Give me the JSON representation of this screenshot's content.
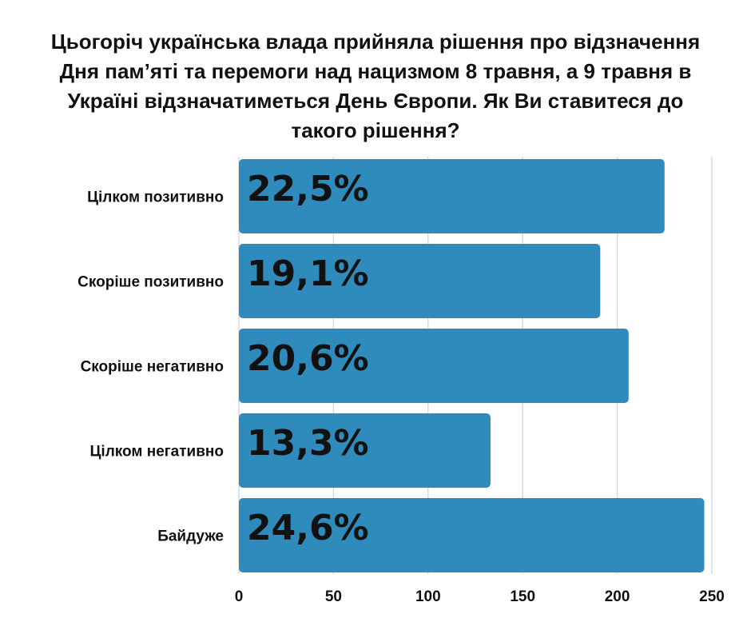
{
  "chart_data": {
    "type": "bar",
    "orientation": "horizontal",
    "title": "Цьогоріч українська влада прийняла рішення про відзначення Дня пам’яті та перемоги над нацизмом 8 травня, а 9 травня в Україні відзначатиметься День Європи. Як Ви ставитеся до такого рішення?",
    "categories": [
      "Цілком позитивно",
      "Скоріше позитивно",
      "Скоріше негативно",
      "Цілком негативно",
      "Байдуже"
    ],
    "values": [
      225,
      191,
      206,
      133,
      246
    ],
    "data_labels": [
      "22,5%",
      "19,1%",
      "20,6%",
      "13,3%",
      "24,6%"
    ],
    "xlim": [
      0,
      250
    ],
    "xticks": [
      0,
      50,
      100,
      150,
      200,
      250
    ],
    "grid": true,
    "bar_color": "#2e8bbb",
    "grid_color": "#d9d9d9"
  }
}
